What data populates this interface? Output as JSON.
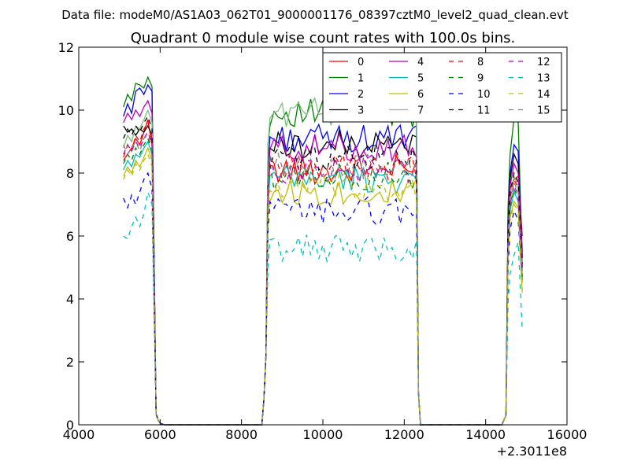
{
  "figure": {
    "suptitle": "Data file: modeM0/AS1A03_062T01_9000001176_08397cztM0_level2_quad_clean.evt"
  },
  "chart_data": {
    "type": "line",
    "title": "Quadrant 0 module wise count rates with 100.0s bins.",
    "xlabel": "",
    "ylabel": "",
    "x_offset_label": "+2.3011e8",
    "xlim": [
      4000,
      16000
    ],
    "ylim": [
      0,
      12
    ],
    "x_ticks": [
      4000,
      6000,
      8000,
      10000,
      12000,
      14000,
      16000
    ],
    "y_ticks": [
      0,
      2,
      4,
      6,
      8,
      10,
      12
    ],
    "x_tick_labels": [
      "4000",
      "6000",
      "8000",
      "10000",
      "12000",
      "14000",
      "16000"
    ],
    "y_tick_labels": [
      "0",
      "2",
      "4",
      "6",
      "8",
      "10",
      "12"
    ],
    "grid": false,
    "legend": {
      "placement": "top-right",
      "columns": 4
    },
    "segments": [
      {
        "start": 5100,
        "end": 5800,
        "step": 100
      },
      {
        "start": 8700,
        "end": 12300,
        "step": 100
      },
      {
        "start": 14600,
        "end": 14900,
        "step": 100
      }
    ],
    "transitions": [
      {
        "from": 5800,
        "to": 6000,
        "drop": [
          5900,
          5950,
          6000,
          6100
        ]
      },
      {
        "from": 8600,
        "to": 8700,
        "rise": [
          8550,
          8600,
          8650
        ]
      },
      {
        "from": 12300,
        "to": 12400,
        "drop": [
          12350,
          12400
        ]
      },
      {
        "from": 14500,
        "to": 14600,
        "rise": [
          14500,
          14550
        ]
      }
    ],
    "series": [
      {
        "name": "0",
        "color": "#ff0000",
        "dash": "solid",
        "seg1": [
          8.4,
          8.6,
          8.8,
          9.1,
          8.9,
          9.3,
          9.7,
          8.9
        ],
        "seg2_mean": 8.1,
        "seg3": [
          7.5,
          7.8,
          7.9,
          6.0
        ]
      },
      {
        "name": "1",
        "color": "#008000",
        "dash": "solid",
        "seg1": [
          10.1,
          10.5,
          10.3,
          10.85,
          10.8,
          10.7,
          11.05,
          10.75
        ],
        "seg2_mean": 9.9,
        "seg3": [
          8.6,
          9.75,
          9.65,
          5.0
        ]
      },
      {
        "name": "2",
        "color": "#0000ff",
        "dash": "solid",
        "seg1": [
          9.8,
          10.2,
          9.9,
          10.6,
          10.7,
          10.5,
          10.8,
          10.6
        ],
        "seg2_mean": 9.1,
        "seg3": [
          8.0,
          8.9,
          8.7,
          5.3
        ]
      },
      {
        "name": "3",
        "color": "#000000",
        "dash": "solid",
        "seg1": [
          9.5,
          9.3,
          9.4,
          9.2,
          9.4,
          9.3,
          9.5,
          9.2
        ],
        "seg2_mean": 8.9,
        "seg3": [
          7.8,
          8.6,
          8.3,
          5.5
        ]
      },
      {
        "name": "4",
        "color": "#bf00bf",
        "dash": "solid",
        "seg1": [
          9.6,
          9.9,
          9.7,
          10.0,
          9.8,
          10.1,
          10.3,
          9.9
        ],
        "seg2_mean": 8.8,
        "seg3": [
          7.6,
          8.3,
          8.0,
          5.4
        ]
      },
      {
        "name": "5",
        "color": "#00bfbf",
        "dash": "solid",
        "seg1": [
          8.1,
          8.4,
          8.2,
          8.6,
          8.5,
          8.8,
          9.0,
          8.6
        ],
        "seg2_mean": 7.8,
        "seg3": [
          6.8,
          7.4,
          7.1,
          4.6
        ]
      },
      {
        "name": "6",
        "color": "#bfbf00",
        "dash": "solid",
        "seg1": [
          7.9,
          8.2,
          8.0,
          8.4,
          8.2,
          8.5,
          8.8,
          8.4
        ],
        "seg2_mean": 7.4,
        "seg3": [
          6.6,
          7.1,
          6.9,
          4.2
        ]
      },
      {
        "name": "7",
        "color": "#7fbf7f",
        "dash": "solid",
        "seg1": [
          8.8,
          9.2,
          9.0,
          9.5,
          9.4,
          9.7,
          10.0,
          9.6
        ],
        "seg2_mean": 9.9,
        "seg3": [
          7.3,
          7.9,
          7.6,
          4.8
        ]
      },
      {
        "name": "8",
        "color": "#ff0000",
        "dash": "dashed",
        "seg1": [
          8.5,
          8.9,
          8.7,
          9.2,
          9.0,
          9.4,
          9.6,
          9.1
        ],
        "seg2_mean": 8.2,
        "seg3": [
          7.2,
          7.8,
          7.5,
          5.0
        ]
      },
      {
        "name": "9",
        "color": "#008000",
        "dash": "dashed",
        "seg1": [
          8.3,
          8.6,
          8.4,
          8.8,
          8.6,
          8.9,
          9.1,
          8.7
        ],
        "seg2_mean": 7.9,
        "seg3": [
          6.9,
          7.5,
          7.2,
          4.7
        ]
      },
      {
        "name": "10",
        "color": "#0000ff",
        "dash": "dashed",
        "seg1": [
          7.2,
          6.9,
          7.3,
          7.0,
          7.4,
          7.8,
          8.0,
          7.5
        ],
        "seg2_mean": 6.8,
        "seg3": [
          6.2,
          6.8,
          6.5,
          4.4
        ]
      },
      {
        "name": "11",
        "color": "#000000",
        "dash": "dashed",
        "seg1": [
          9.1,
          9.4,
          9.2,
          9.5,
          9.3,
          9.6,
          9.8,
          9.4
        ],
        "seg2_mean": 8.5,
        "seg3": [
          7.4,
          8.0,
          7.7,
          5.1
        ]
      },
      {
        "name": "12",
        "color": "#bf00bf",
        "dash": "dashed",
        "seg1": [
          8.6,
          8.9,
          8.7,
          9.0,
          8.8,
          9.1,
          9.3,
          8.9
        ],
        "seg2_mean": 8.1,
        "seg3": [
          7.0,
          7.6,
          7.3,
          4.9
        ]
      },
      {
        "name": "13",
        "color": "#00bfbf",
        "dash": "dashed",
        "seg1": [
          6.0,
          5.9,
          6.3,
          6.6,
          6.3,
          6.7,
          7.4,
          7.0
        ],
        "seg2_mean": 5.6,
        "seg3": [
          4.8,
          5.4,
          5.8,
          3.0
        ]
      },
      {
        "name": "14",
        "color": "#bfbf00",
        "dash": "dashed",
        "seg1": [
          7.8,
          8.1,
          7.9,
          8.3,
          8.1,
          8.4,
          8.6,
          8.2
        ],
        "seg2_mean": 7.5,
        "seg3": [
          6.5,
          7.0,
          6.8,
          4.3
        ]
      },
      {
        "name": "15",
        "color": "#7f7f7f",
        "dash": "dashed",
        "seg1": [
          8.9,
          8.6,
          8.8,
          9.0,
          8.7,
          9.1,
          9.2,
          8.8
        ],
        "seg2_mean": 8.2,
        "seg3": [
          7.1,
          7.7,
          7.4,
          4.9
        ]
      }
    ]
  }
}
